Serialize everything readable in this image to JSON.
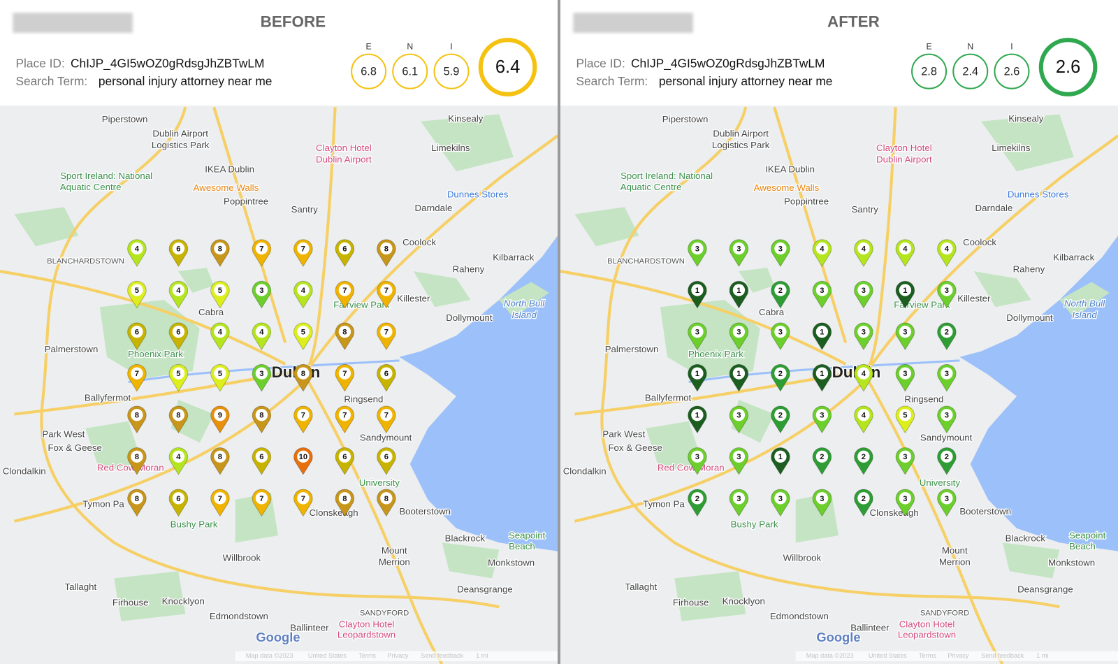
{
  "panels": [
    {
      "title": "BEFORE",
      "place_id_label": "Place ID:",
      "place_id": "ChIJP_4GI5wOZ0gRdsgJhZBTwLM",
      "search_term_label": "Search Term:",
      "search_term": "personal injury attorney near me",
      "scores": [
        {
          "label": "E",
          "value": 6.8
        },
        {
          "label": "N",
          "value": 6.1
        },
        {
          "label": "I",
          "value": 5.9
        }
      ],
      "overall": 6.4,
      "ring_color": "#f5c211",
      "grid": [
        [
          4,
          6,
          8,
          7,
          7,
          6,
          8
        ],
        [
          5,
          4,
          5,
          3,
          4,
          7,
          7
        ],
        [
          6,
          6,
          4,
          4,
          5,
          8,
          7
        ],
        [
          7,
          5,
          5,
          3,
          8,
          7,
          6
        ],
        [
          8,
          8,
          9,
          8,
          7,
          7,
          7
        ],
        [
          8,
          4,
          8,
          6,
          10,
          6,
          6
        ],
        [
          8,
          6,
          7,
          7,
          7,
          8,
          8
        ]
      ]
    },
    {
      "title": "AFTER",
      "place_id_label": "Place ID:",
      "place_id": "ChIJP_4GI5wOZ0gRdsgJhZBTwLM",
      "search_term_label": "Search Term:",
      "search_term": "personal injury attorney near me",
      "scores": [
        {
          "label": "E",
          "value": 2.8
        },
        {
          "label": "N",
          "value": 2.4
        },
        {
          "label": "I",
          "value": 2.6
        }
      ],
      "overall": 2.6,
      "ring_color": "#2fa84f",
      "grid": [
        [
          3,
          3,
          3,
          4,
          4,
          4,
          4
        ],
        [
          1,
          1,
          2,
          3,
          3,
          1,
          3
        ],
        [
          3,
          3,
          3,
          1,
          3,
          3,
          2
        ],
        [
          1,
          1,
          2,
          1,
          4,
          3,
          3
        ],
        [
          1,
          3,
          2,
          3,
          4,
          5,
          3
        ],
        [
          3,
          3,
          1,
          2,
          2,
          3,
          2
        ],
        [
          2,
          3,
          3,
          3,
          2,
          3,
          3
        ]
      ]
    }
  ],
  "rank_colors": {
    "1": "#1b5e20",
    "2": "#2e9e34",
    "3": "#6ccf2c",
    "4": "#b5e61d",
    "5": "#dcef1c",
    "6": "#c8b400",
    "7": "#f0b400",
    "8": "#c8961a",
    "9": "#e8900c",
    "10": "#e8700c"
  },
  "map_labels": [
    "Piperstown",
    "Dublin Airport",
    "Logistics Park",
    "Kinsealy",
    "Clayton Hotel",
    "Dublin Airport",
    "Limekilns",
    "IKEA Dublin",
    "Sport Ireland: National",
    "Aquatic Centre",
    "Awesome Walls",
    "Dunnes Stores",
    "Poppintree",
    "Santry",
    "Darndale",
    "Coolock",
    "BLANCHARDSTOWN",
    "Kilbarrack",
    "Raheny",
    "Killester",
    "Fairview Park",
    "North Bull",
    "Island",
    "Dollymount",
    "Cabra",
    "Palmerstown",
    "Phoenix Park",
    "Dublin",
    "Ballyfermot",
    "Ringsend",
    "Sandymount",
    "Park West",
    "Fox & Geese",
    "Clondalkin",
    "Red Cow Moran",
    "University",
    "Booterstown",
    "Clonskeagh",
    "Bushy Park",
    "Tymon Pa",
    "Blackrock",
    "Seapoint",
    "Beach",
    "Willbrook",
    "Mount",
    "Merrion",
    "Monkstown",
    "Tallaght",
    "Deansgrange",
    "Firhouse",
    "Knocklyon",
    "Edmondstown",
    "SANDYFORD",
    "Ballinteer",
    "Clayton Hotel",
    "Leopardstown",
    "Google",
    "Map data ©2023",
    "United States",
    "Terms",
    "Privacy",
    "Send feedback",
    "1 mi"
  ]
}
